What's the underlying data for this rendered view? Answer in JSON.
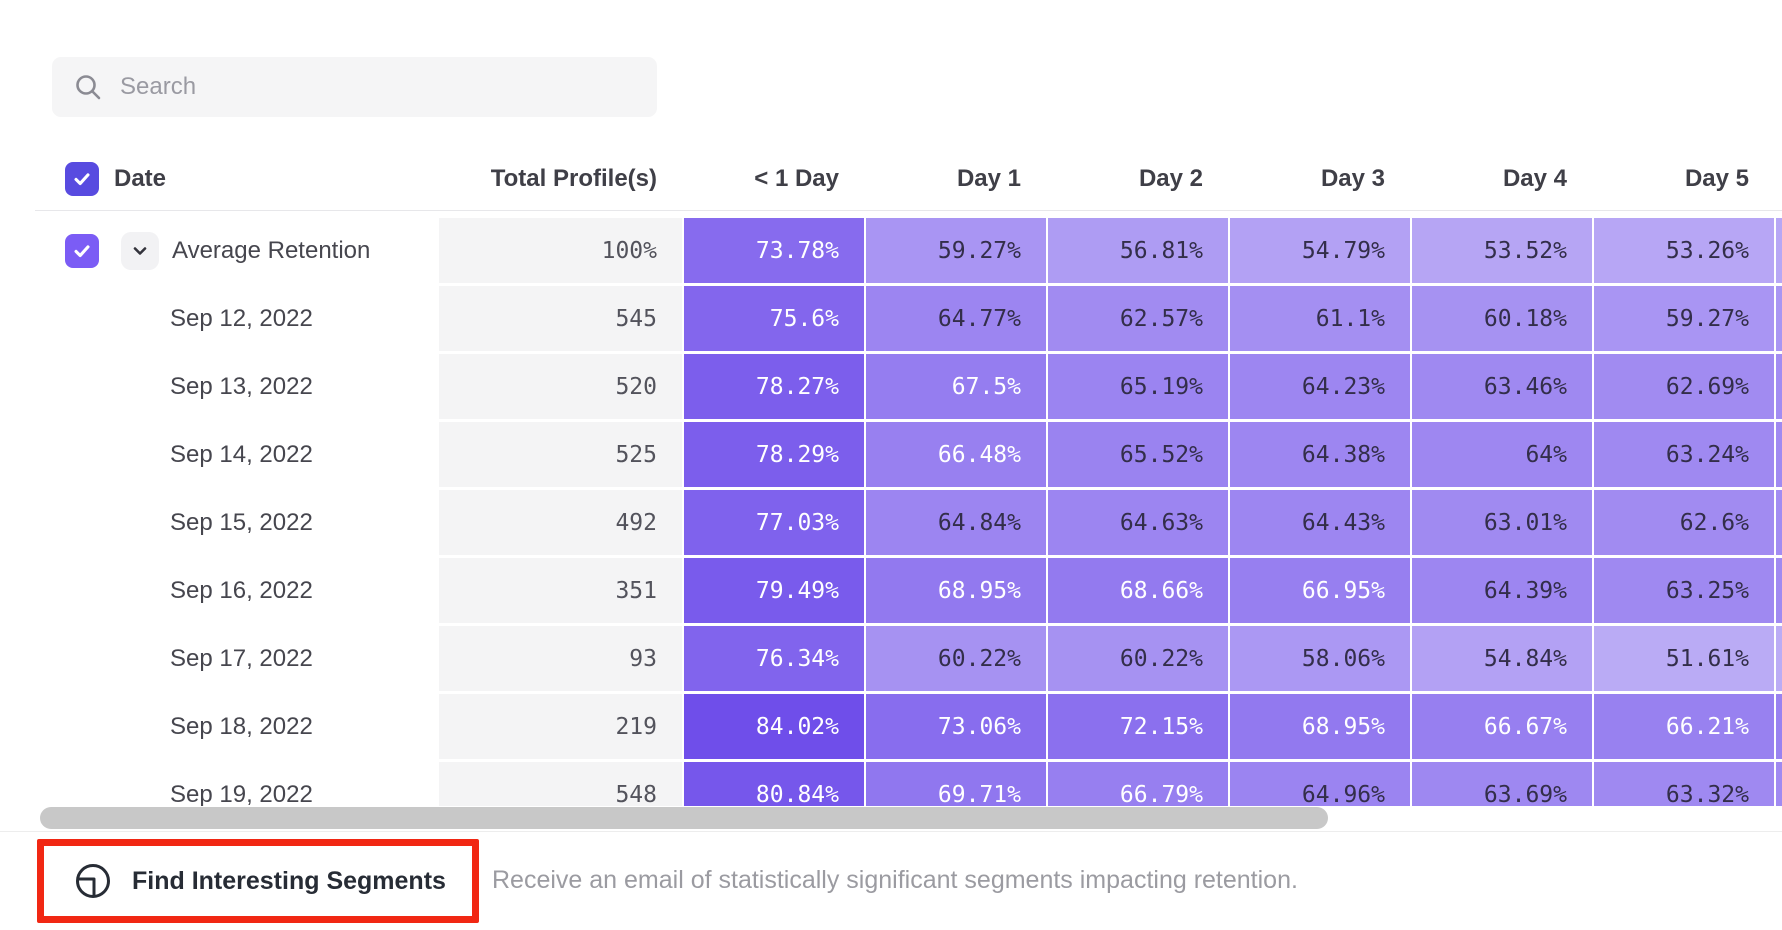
{
  "search": {
    "placeholder": "Search"
  },
  "table": {
    "columns": [
      "Date",
      "Total Profile(s)",
      "< 1 Day",
      "Day 1",
      "Day 2",
      "Day 3",
      "Day 4",
      "Day 5"
    ],
    "header_checkbox_checked": true,
    "rows": [
      {
        "label": "Average Retention",
        "is_average": true,
        "checked": true,
        "expanded": true,
        "total": "100%",
        "values": [
          "73.78%",
          "59.27%",
          "56.81%",
          "54.79%",
          "53.52%",
          "53.26%"
        ]
      },
      {
        "label": "Sep 12, 2022",
        "total": "545",
        "values": [
          "75.6%",
          "64.77%",
          "62.57%",
          "61.1%",
          "60.18%",
          "59.27%"
        ]
      },
      {
        "label": "Sep 13, 2022",
        "total": "520",
        "values": [
          "78.27%",
          "67.5%",
          "65.19%",
          "64.23%",
          "63.46%",
          "62.69%"
        ]
      },
      {
        "label": "Sep 14, 2022",
        "total": "525",
        "values": [
          "78.29%",
          "66.48%",
          "65.52%",
          "64.38%",
          "64%",
          "63.24%"
        ]
      },
      {
        "label": "Sep 15, 2022",
        "total": "492",
        "values": [
          "77.03%",
          "64.84%",
          "64.63%",
          "64.43%",
          "63.01%",
          "62.6%"
        ]
      },
      {
        "label": "Sep 16, 2022",
        "total": "351",
        "values": [
          "79.49%",
          "68.95%",
          "68.66%",
          "66.95%",
          "64.39%",
          "63.25%"
        ]
      },
      {
        "label": "Sep 17, 2022",
        "total": "93",
        "values": [
          "76.34%",
          "60.22%",
          "60.22%",
          "58.06%",
          "54.84%",
          "51.61%"
        ]
      },
      {
        "label": "Sep 18, 2022",
        "total": "219",
        "values": [
          "84.02%",
          "73.06%",
          "72.15%",
          "68.95%",
          "66.67%",
          "66.21%"
        ]
      },
      {
        "label": "Sep 19, 2022",
        "total": "548",
        "values": [
          "80.84%",
          "69.71%",
          "66.79%",
          "64.96%",
          "63.69%",
          "63.32%"
        ]
      }
    ]
  },
  "footer": {
    "button_label": "Find Interesting Segments",
    "description": "Receive an email of statistically significant segments impacting retention."
  },
  "colors": {
    "accent_purple": "#5F3AE8",
    "header_checkbox": "#584BE0",
    "row_checkbox": "#7B5CF5",
    "highlight_red": "#F12713",
    "cell_text_dark": "#332E4A",
    "cell_text_light": "#FFFFFF",
    "white_text_threshold": 66
  }
}
